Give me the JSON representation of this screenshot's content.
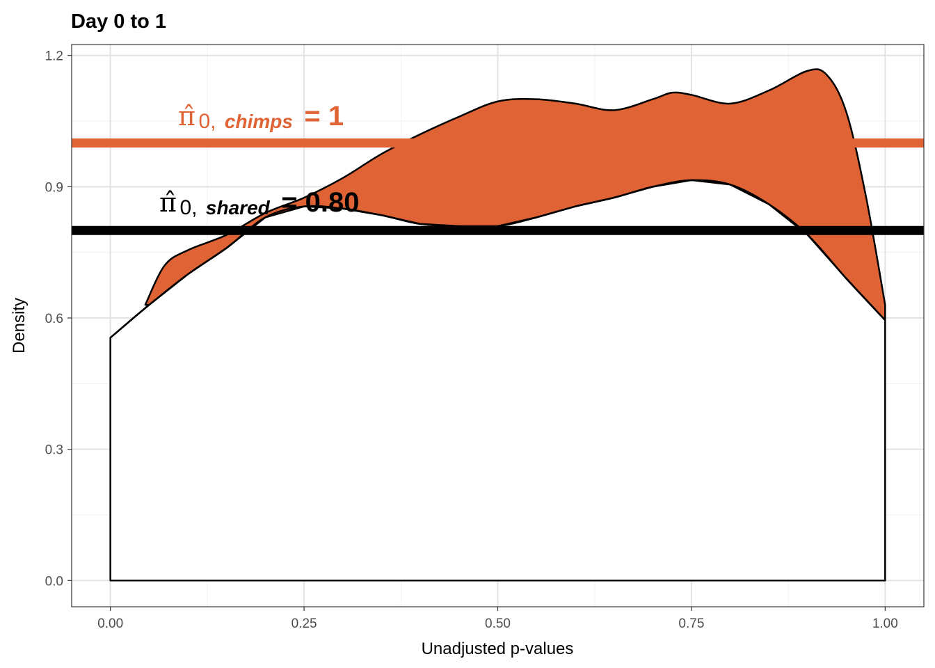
{
  "chart_data": {
    "type": "area",
    "title": "Day 0 to 1",
    "xlabel": "Unadjusted p-values",
    "ylabel": "Density",
    "xlim": [
      -0.05,
      1.05
    ],
    "ylim": [
      -0.06,
      1.225
    ],
    "x_ticks": [
      0.0,
      0.25,
      0.5,
      0.75,
      1.0
    ],
    "x_tick_labels": [
      "0.00",
      "0.25",
      "0.50",
      "0.75",
      "1.00"
    ],
    "y_ticks": [
      0.0,
      0.3,
      0.6,
      0.9,
      1.2
    ],
    "y_tick_labels": [
      "0.0",
      "0.3",
      "0.6",
      "0.9",
      "1.2"
    ],
    "grid": true,
    "series": [
      {
        "fill": "#ffffff",
        "stroke": "#000000",
        "x": [
          0.0,
          0.05,
          0.1,
          0.15,
          0.2,
          0.25,
          0.3,
          0.35,
          0.4,
          0.45,
          0.5,
          0.55,
          0.6,
          0.65,
          0.7,
          0.75,
          0.8,
          0.85,
          0.9,
          0.95,
          1.0
        ],
        "y": [
          0.555,
          0.63,
          0.7,
          0.76,
          0.83,
          0.855,
          0.85,
          0.835,
          0.815,
          0.81,
          0.81,
          0.83,
          0.855,
          0.875,
          0.9,
          0.915,
          0.905,
          0.86,
          0.79,
          0.69,
          0.595
        ]
      },
      {
        "fill": "#E06336",
        "stroke": "#000000",
        "x": [
          0.045,
          0.07,
          0.1,
          0.15,
          0.2,
          0.25,
          0.3,
          0.35,
          0.4,
          0.45,
          0.5,
          0.55,
          0.6,
          0.65,
          0.7,
          0.725,
          0.75,
          0.8,
          0.85,
          0.9,
          0.925,
          0.95,
          0.975,
          1.0
        ],
        "y": [
          0.63,
          0.72,
          0.755,
          0.79,
          0.84,
          0.875,
          0.92,
          0.975,
          1.02,
          1.06,
          1.095,
          1.1,
          1.09,
          1.075,
          1.1,
          1.115,
          1.11,
          1.09,
          1.12,
          1.165,
          1.155,
          1.07,
          0.88,
          0.63
        ]
      }
    ],
    "hlines": [
      {
        "y": 1.0,
        "color": "#E06336",
        "label_prefix": "π̂",
        "label_subscript": "0,",
        "label_group": "chimps",
        "label_value": "= 1"
      },
      {
        "y": 0.8,
        "color": "#000000",
        "label_prefix": "π̂",
        "label_subscript": "0,",
        "label_group": "shared",
        "label_value": "= 0.80"
      }
    ]
  }
}
